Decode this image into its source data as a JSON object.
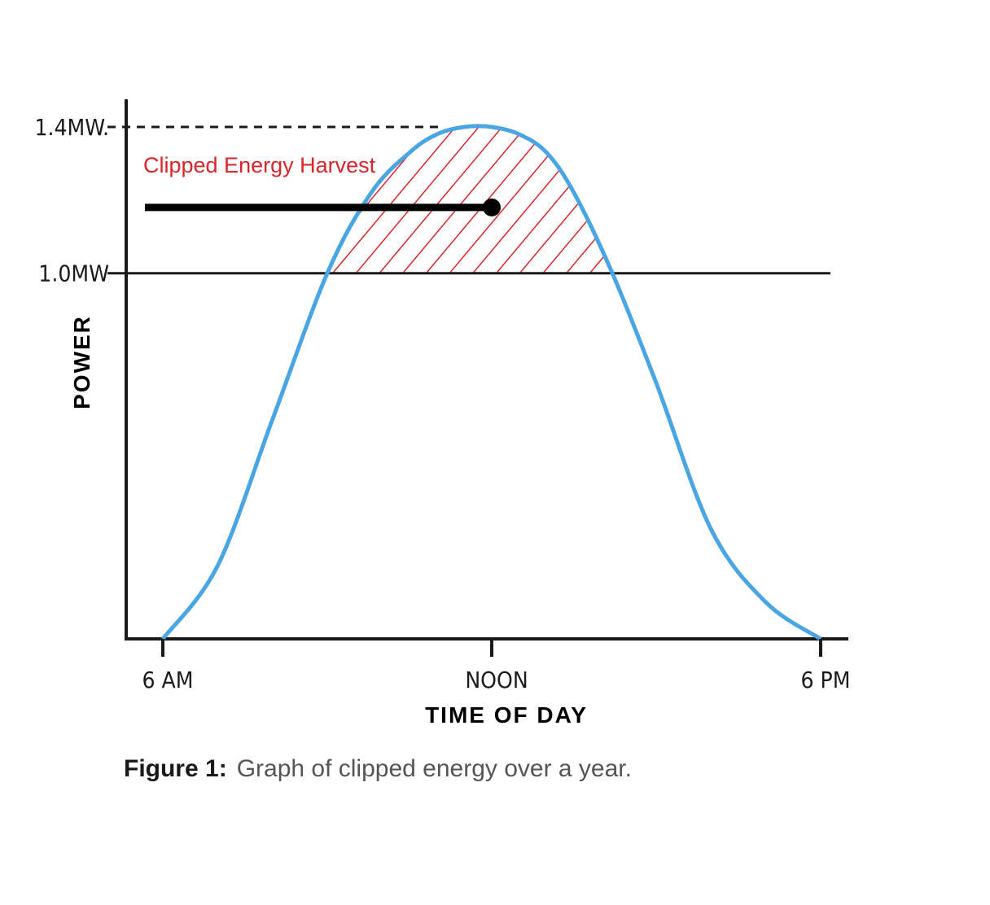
{
  "chart_data": {
    "type": "area",
    "xlabel": "TIME OF DAY",
    "ylabel": "POWER",
    "x_ticks": [
      "6 AM",
      "NOON",
      "6 PM"
    ],
    "y_ticks": [
      "1.4MW",
      "1.0MW"
    ],
    "y_reference_lines": [
      {
        "value": 1.4,
        "label": "1.4MW",
        "style": "dashed"
      },
      {
        "value": 1.0,
        "label": "1.0MW",
        "style": "solid"
      }
    ],
    "xlim": [
      6,
      18
    ],
    "ylim": [
      0,
      1.4
    ],
    "series": [
      {
        "x": [
          6,
          7,
          8,
          9,
          9.8,
          10.5,
          11,
          11.5,
          12,
          12.5,
          13,
          13.5,
          14.2,
          15,
          16,
          17,
          18
        ],
        "values": [
          0,
          0.2,
          0.6,
          1.0,
          1.22,
          1.33,
          1.38,
          1.4,
          1.4,
          1.38,
          1.33,
          1.22,
          1.0,
          0.7,
          0.3,
          0.1,
          0
        ]
      }
    ],
    "annotation": {
      "text": "Clipped Energy Harvest",
      "points_to_x": 12,
      "points_to_y": 1.18
    },
    "clip_threshold": 1.0,
    "colors": {
      "curve": "#4aa6e2",
      "clip_hatch": "#d8262b",
      "axis": "#1a1a1a",
      "annotation": "#d8262b"
    }
  },
  "caption": {
    "label": "Figure 1:",
    "text": "Graph of clipped energy over a year."
  }
}
